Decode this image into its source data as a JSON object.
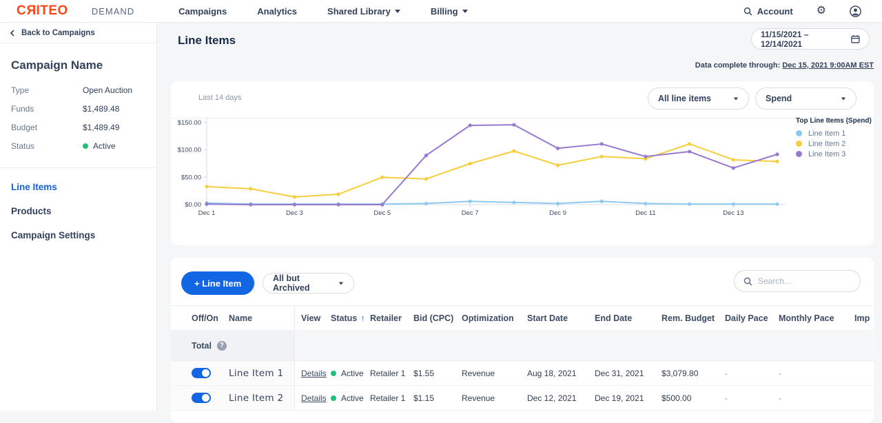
{
  "topnav": {
    "logo": {
      "c": "C",
      "r": "R",
      "rest": "ITEO"
    },
    "product": "DEMAND",
    "items": [
      {
        "label": "Campaigns"
      },
      {
        "label": "Analytics"
      },
      {
        "label": "Shared Library"
      },
      {
        "label": "Billing"
      }
    ],
    "account_label": "Account"
  },
  "sidebar": {
    "back_label": "Back to Campaigns",
    "campaign_name": "Campaign Name",
    "details": [
      {
        "label": "Type",
        "value": "Open Auction"
      },
      {
        "label": "Funds",
        "value": "$1,489.48"
      },
      {
        "label": "Budget",
        "value": "$1,489.49"
      },
      {
        "label": "Status",
        "value": "Active"
      }
    ],
    "status_color": "#21BE79",
    "nav": [
      {
        "label": "Line Items",
        "active": true
      },
      {
        "label": "Products",
        "active": false
      },
      {
        "label": "Campaign Settings",
        "active": false
      }
    ]
  },
  "header": {
    "title": "Line Items",
    "date_range": "11/15/2021 – 12/14/2021",
    "data_note_prefix": "Data complete through:",
    "data_note_value": "Dec 15, 2021 9:00AM EST"
  },
  "chart_card": {
    "period_label": "Last 14 days",
    "filter_dropdown": "All line items",
    "metric_dropdown": "Spend",
    "legend_title": "Top Line Items (Spend)"
  },
  "chart_data": {
    "type": "line",
    "x": [
      "Dec 1",
      "Dec 2",
      "Dec 3",
      "Dec 4",
      "Dec 5",
      "Dec 6",
      "Dec 7",
      "Dec 8",
      "Dec 9",
      "Dec 10",
      "Dec 11",
      "Dec 12",
      "Dec 13",
      "Dec 14"
    ],
    "x_tick_labels": [
      "Dec 1",
      "Dec 3",
      "Dec 5",
      "Dec 7",
      "Dec 9",
      "Dec 11",
      "Dec 13"
    ],
    "yticks": [
      0,
      50,
      100,
      150
    ],
    "ylim": [
      0,
      150
    ],
    "ytick_prefix": "$",
    "grid": false,
    "legend_position": "right",
    "series": [
      {
        "name": "Line Item 1",
        "color": "#8DC9F0",
        "values": [
          3,
          1,
          1,
          1,
          1,
          2,
          6,
          4,
          2,
          6,
          2,
          1,
          1,
          1
        ]
      },
      {
        "name": "Line Item 2",
        "color": "#F6CE3C",
        "values": [
          33,
          29,
          14,
          19,
          50,
          47,
          75,
          98,
          72,
          88,
          84,
          111,
          82,
          79
        ]
      },
      {
        "name": "Line Item 3",
        "color": "#9678D1",
        "values": [
          1,
          0,
          0,
          0,
          0,
          90,
          145,
          146,
          103,
          111,
          88,
          97,
          67,
          92
        ]
      }
    ]
  },
  "table_card": {
    "add_button": "+ Line Item",
    "filter_dropdown": "All but Archived",
    "search_placeholder": "Search...",
    "columns": [
      "Off/On",
      "Name",
      "View",
      "Status",
      "Retailer",
      "Bid (CPC)",
      "Optimization",
      "Start Date",
      "End Date",
      "Rem. Budget",
      "Daily Pace",
      "Monthly Pace",
      "Imp"
    ],
    "status_sort_arrow": "↑",
    "total_label": "Total",
    "rows": [
      {
        "on": true,
        "name": "Line Item 1",
        "view": "Details",
        "status": "Active",
        "retailer": "Retailer 1",
        "bid": "$1.55",
        "optimization": "Revenue",
        "start_date": "Aug 18, 2021",
        "end_date": "Dec 31, 2021",
        "rem_budget": "$3,079.80",
        "daily_pace": "-",
        "monthly_pace": "-"
      },
      {
        "on": true,
        "name": "Line Item 2",
        "view": "Details",
        "status": "Active",
        "retailer": "Retailer 1",
        "bid": "$1.15",
        "optimization": "Revenue",
        "start_date": "Dec 12, 2021",
        "end_date": "Dec 19, 2021",
        "rem_budget": "$500.00",
        "daily_pace": "-",
        "monthly_pace": "-"
      }
    ]
  },
  "colors": {
    "brand_orange": "#FA4616",
    "accent_blue": "#1266E3",
    "status_green": "#21BE79"
  }
}
